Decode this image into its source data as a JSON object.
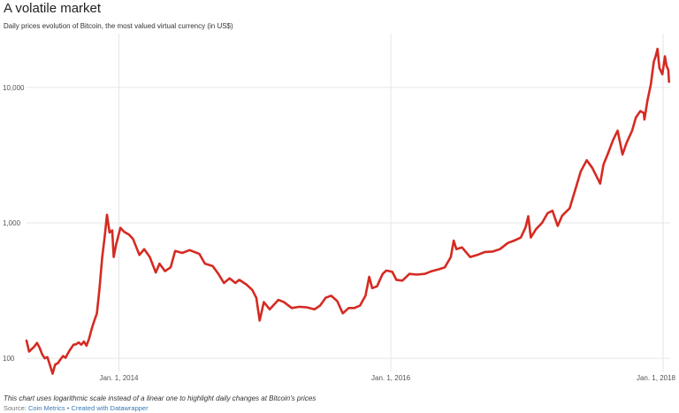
{
  "title": "A volatile market",
  "subtitle": "Daily prices evolution of Bitcoin, the most valued virtual currency (in US$)",
  "note": "This chart uses logarithmic scale instead of a linear one to highlight daily changes at Bitcoin's prices",
  "source": {
    "label": "Source:",
    "name": "Coin Metrics",
    "separator": "•",
    "credit": "Created with Datawrapper"
  },
  "colors": {
    "line": "#d52a22",
    "grid": "#e6e6e6",
    "link": "#3a78b5"
  },
  "chart_data": {
    "type": "line",
    "yscale": "log",
    "ylim": [
      80,
      25000
    ],
    "xlim": [
      "2013-04-28",
      "2018-01-20"
    ],
    "grid": true,
    "y_ticks": [
      {
        "value": 100,
        "label": "100"
      },
      {
        "value": 1000,
        "label": "1,000"
      },
      {
        "value": 10000,
        "label": "10,000"
      }
    ],
    "x_ticks": [
      {
        "value": "2014-01-01",
        "label": "Jan. 1, 2014"
      },
      {
        "value": "2016-01-01",
        "label": "Jan. 1, 2016"
      },
      {
        "value": "2018-01-01",
        "label": "Jan. 1, 2018"
      }
    ],
    "series": [
      {
        "values": [
          [
            "2013-04-28",
            135
          ],
          [
            "2013-05-05",
            112
          ],
          [
            "2013-05-12",
            117
          ],
          [
            "2013-05-19",
            122
          ],
          [
            "2013-05-26",
            130
          ],
          [
            "2013-06-02",
            120
          ],
          [
            "2013-06-09",
            107
          ],
          [
            "2013-06-16",
            100
          ],
          [
            "2013-06-23",
            102
          ],
          [
            "2013-06-30",
            89
          ],
          [
            "2013-07-07",
            77
          ],
          [
            "2013-07-14",
            90
          ],
          [
            "2013-07-21",
            92
          ],
          [
            "2013-07-28",
            98
          ],
          [
            "2013-08-04",
            104
          ],
          [
            "2013-08-11",
            101
          ],
          [
            "2013-08-18",
            110
          ],
          [
            "2013-08-25",
            118
          ],
          [
            "2013-09-01",
            126
          ],
          [
            "2013-09-08",
            127
          ],
          [
            "2013-09-15",
            131
          ],
          [
            "2013-09-22",
            126
          ],
          [
            "2013-09-29",
            133
          ],
          [
            "2013-10-06",
            124
          ],
          [
            "2013-10-13",
            140
          ],
          [
            "2013-10-20",
            165
          ],
          [
            "2013-10-27",
            190
          ],
          [
            "2013-11-03",
            215
          ],
          [
            "2013-11-10",
            330
          ],
          [
            "2013-11-17",
            550
          ],
          [
            "2013-11-24",
            800
          ],
          [
            "2013-11-30",
            1150
          ],
          [
            "2013-12-07",
            850
          ],
          [
            "2013-12-14",
            880
          ],
          [
            "2013-12-18",
            560
          ],
          [
            "2013-12-25",
            700
          ],
          [
            "2014-01-05",
            920
          ],
          [
            "2014-01-15",
            860
          ],
          [
            "2014-01-28",
            820
          ],
          [
            "2014-02-08",
            760
          ],
          [
            "2014-02-25",
            580
          ],
          [
            "2014-03-10",
            640
          ],
          [
            "2014-03-25",
            560
          ],
          [
            "2014-04-10",
            430
          ],
          [
            "2014-04-20",
            500
          ],
          [
            "2014-05-05",
            440
          ],
          [
            "2014-05-20",
            470
          ],
          [
            "2014-06-01",
            620
          ],
          [
            "2014-06-20",
            600
          ],
          [
            "2014-07-10",
            630
          ],
          [
            "2014-08-05",
            590
          ],
          [
            "2014-08-20",
            500
          ],
          [
            "2014-09-10",
            480
          ],
          [
            "2014-09-25",
            420
          ],
          [
            "2014-10-10",
            360
          ],
          [
            "2014-10-25",
            390
          ],
          [
            "2014-11-10",
            360
          ],
          [
            "2014-11-20",
            380
          ],
          [
            "2014-12-10",
            350
          ],
          [
            "2014-12-25",
            320
          ],
          [
            "2015-01-05",
            280
          ],
          [
            "2015-01-14",
            190
          ],
          [
            "2015-01-25",
            260
          ],
          [
            "2015-02-10",
            230
          ],
          [
            "2015-03-05",
            270
          ],
          [
            "2015-03-20",
            260
          ],
          [
            "2015-04-10",
            235
          ],
          [
            "2015-05-01",
            240
          ],
          [
            "2015-05-20",
            238
          ],
          [
            "2015-06-10",
            230
          ],
          [
            "2015-06-25",
            245
          ],
          [
            "2015-07-10",
            280
          ],
          [
            "2015-07-25",
            290
          ],
          [
            "2015-08-10",
            265
          ],
          [
            "2015-08-25",
            215
          ],
          [
            "2015-09-10",
            235
          ],
          [
            "2015-09-25",
            235
          ],
          [
            "2015-10-10",
            245
          ],
          [
            "2015-10-25",
            290
          ],
          [
            "2015-11-04",
            400
          ],
          [
            "2015-11-12",
            330
          ],
          [
            "2015-11-25",
            340
          ],
          [
            "2015-12-10",
            420
          ],
          [
            "2015-12-20",
            445
          ],
          [
            "2016-01-05",
            435
          ],
          [
            "2016-01-16",
            380
          ],
          [
            "2016-02-01",
            375
          ],
          [
            "2016-02-20",
            420
          ],
          [
            "2016-03-10",
            415
          ],
          [
            "2016-04-01",
            420
          ],
          [
            "2016-04-20",
            440
          ],
          [
            "2016-05-10",
            455
          ],
          [
            "2016-05-25",
            470
          ],
          [
            "2016-06-10",
            560
          ],
          [
            "2016-06-18",
            740
          ],
          [
            "2016-06-25",
            640
          ],
          [
            "2016-07-10",
            660
          ],
          [
            "2016-08-01",
            560
          ],
          [
            "2016-08-20",
            580
          ],
          [
            "2016-09-10",
            610
          ],
          [
            "2016-10-01",
            615
          ],
          [
            "2016-10-20",
            640
          ],
          [
            "2016-11-10",
            710
          ],
          [
            "2016-11-30",
            745
          ],
          [
            "2016-12-15",
            780
          ],
          [
            "2016-12-28",
            930
          ],
          [
            "2017-01-04",
            1120
          ],
          [
            "2017-01-11",
            780
          ],
          [
            "2017-01-25",
            900
          ],
          [
            "2017-02-10",
            1000
          ],
          [
            "2017-02-25",
            1180
          ],
          [
            "2017-03-10",
            1230
          ],
          [
            "2017-03-24",
            950
          ],
          [
            "2017-04-05",
            1130
          ],
          [
            "2017-04-25",
            1280
          ],
          [
            "2017-05-10",
            1750
          ],
          [
            "2017-05-25",
            2400
          ],
          [
            "2017-06-10",
            2900
          ],
          [
            "2017-06-25",
            2550
          ],
          [
            "2017-07-16",
            1950
          ],
          [
            "2017-07-25",
            2700
          ],
          [
            "2017-08-05",
            3200
          ],
          [
            "2017-08-20",
            4100
          ],
          [
            "2017-09-01",
            4800
          ],
          [
            "2017-09-14",
            3200
          ],
          [
            "2017-09-25",
            3900
          ],
          [
            "2017-10-10",
            4800
          ],
          [
            "2017-10-20",
            6000
          ],
          [
            "2017-11-01",
            6700
          ],
          [
            "2017-11-10",
            6500
          ],
          [
            "2017-11-12",
            5800
          ],
          [
            "2017-11-20",
            8000
          ],
          [
            "2017-11-29",
            10500
          ],
          [
            "2017-12-07",
            15500
          ],
          [
            "2017-12-12",
            17000
          ],
          [
            "2017-12-17",
            19300
          ],
          [
            "2017-12-22",
            14000
          ],
          [
            "2017-12-30",
            12500
          ],
          [
            "2018-01-06",
            17000
          ],
          [
            "2018-01-10",
            14500
          ],
          [
            "2018-01-15",
            13500
          ],
          [
            "2018-01-17",
            11000
          ]
        ]
      }
    ]
  }
}
